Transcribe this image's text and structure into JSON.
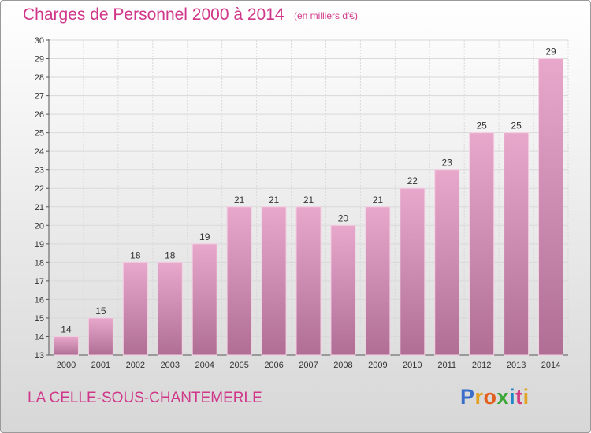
{
  "header": {
    "title": "Charges de Personnel 2000 à 2014",
    "subtitle": "(en milliers d'€)"
  },
  "footer": {
    "commune": "LA CELLE-SOUS-CHANTEMERLE"
  },
  "logo": {
    "letters": [
      "P",
      "r",
      "o",
      "x",
      "i",
      "t",
      "i"
    ],
    "colors": [
      "#3a6ec8",
      "#e2a322",
      "#e25e1c",
      "#3aa635",
      "#1f84c8",
      "#d33a7f",
      "#e2a322"
    ]
  },
  "colors": {
    "bar_top": "#e8a8cc",
    "bar_bottom": "#b06e95",
    "text_accent": "#d0378a",
    "grid": "#d9d9d9"
  },
  "chart_data": {
    "type": "bar",
    "categories": [
      "2000",
      "2001",
      "2002",
      "2003",
      "2004",
      "2005",
      "2006",
      "2007",
      "2008",
      "2009",
      "2010",
      "2011",
      "2012",
      "2013",
      "2014"
    ],
    "values": [
      14,
      15,
      18,
      18,
      19,
      21,
      21,
      21,
      20,
      21,
      22,
      23,
      25,
      25,
      29
    ],
    "ylim": [
      13,
      30
    ],
    "yticks": [
      13,
      14,
      15,
      16,
      17,
      18,
      19,
      20,
      21,
      22,
      23,
      24,
      25,
      26,
      27,
      28,
      29,
      30
    ],
    "grid": true,
    "data_labels": true
  }
}
